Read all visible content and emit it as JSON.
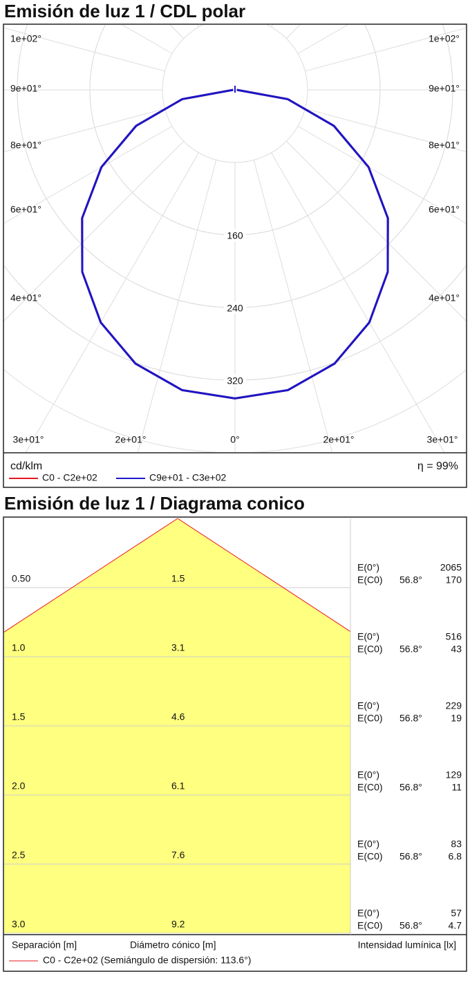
{
  "chart_data": [
    {
      "type": "polar",
      "title": "Emisión de luz 1 / CDL polar",
      "left_labels": [
        "1e+02°",
        "9e+01°",
        "8e+01°",
        "6e+01°",
        "4e+01°"
      ],
      "right_labels": [
        "1e+02°",
        "9e+01°",
        "8e+01°",
        "6e+01°",
        "4e+01°"
      ],
      "bottom_labels": [
        "3e+01°",
        "2e+01°",
        "0°",
        "2e+01°",
        "3e+01°"
      ],
      "rlim": [
        0,
        400
      ],
      "rticks": [
        160,
        240,
        320
      ],
      "unit": "cd/klm",
      "efficiency": "η = 99%",
      "x": [
        -90,
        -80,
        -70,
        -60,
        -50,
        -40,
        -30,
        -20,
        -10,
        0,
        10,
        20,
        30,
        40,
        50,
        60,
        70,
        80,
        90
      ],
      "series": [
        {
          "name": "C0 - C2e+02",
          "color": "#e8141e",
          "values": [
            2,
            59,
            116,
            170,
            220,
            262,
            296,
            321,
            336,
            340,
            336,
            321,
            296,
            262,
            220,
            170,
            116,
            59,
            2
          ]
        },
        {
          "name": "C9e+01 - C3e+02",
          "color": "#1a17c8",
          "values": [
            2,
            59,
            116,
            170,
            220,
            262,
            296,
            321,
            336,
            340,
            336,
            321,
            296,
            262,
            220,
            170,
            116,
            59,
            2
          ]
        }
      ]
    },
    {
      "type": "cone",
      "title": "Emisión de luz 1 / Diagrama conico",
      "angle": {
        "value": 56.8,
        "label": "56.8°"
      },
      "e0_label": "E(0°)",
      "ec0_label": "E(C0)",
      "rows": [
        {
          "distance": "0.50",
          "diameter": "1.5",
          "e0": "2065",
          "ec0": "170"
        },
        {
          "distance": "1.0",
          "diameter": "3.1",
          "e0": "516",
          "ec0": "43"
        },
        {
          "distance": "1.5",
          "diameter": "4.6",
          "e0": "229",
          "ec0": "19"
        },
        {
          "distance": "2.0",
          "diameter": "6.1",
          "e0": "129",
          "ec0": "11"
        },
        {
          "distance": "2.5",
          "diameter": "7.6",
          "e0": "83",
          "ec0": "6.8"
        },
        {
          "distance": "3.0",
          "diameter": "9.2",
          "e0": "57",
          "ec0": "4.7"
        }
      ],
      "xlabel": "Separación [m]",
      "diameter_label": "Diámetro cónico [m]",
      "ylabel": "Intensidad lumínica [lx]",
      "legend": "C0 - C2e+02 (Semiángulo de dispersión: 113.6°)",
      "color": "#e8141e"
    }
  ]
}
